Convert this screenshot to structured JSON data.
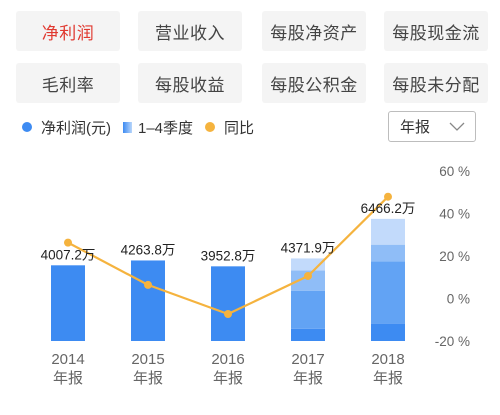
{
  "tabs": [
    {
      "label": "净利润",
      "active": true
    },
    {
      "label": "营业收入",
      "active": false
    },
    {
      "label": "每股净资产",
      "active": false
    },
    {
      "label": "每股现金流",
      "active": false
    },
    {
      "label": "毛利率",
      "active": false
    },
    {
      "label": "每股收益",
      "active": false
    },
    {
      "label": "每股公积金",
      "active": false
    },
    {
      "label": "每股未分配",
      "active": false
    }
  ],
  "legend": {
    "net_profit": "净利润(元)",
    "quarter": "1–4季度",
    "yoy": "同比"
  },
  "period_select": {
    "value": "年报",
    "icon": "chevron-down-icon"
  },
  "colors": {
    "accent": "#e0382f",
    "bar": "#3d8bf2",
    "line": "#f5b33e",
    "quarter_shades": [
      "#3d8bf2",
      "#62a3f4",
      "#8fbdf7",
      "#c2dafb"
    ]
  },
  "chart_data": {
    "type": "bar",
    "categories": [
      "2014",
      "2015",
      "2016",
      "2017",
      "2018"
    ],
    "category_suffix": "年报",
    "values": [
      4007.2,
      4263.8,
      3952.8,
      4371.9,
      6466.2
    ],
    "value_labels": [
      "4007.2万",
      "4263.8万",
      "3952.8万",
      "4371.9万",
      "6466.2万"
    ],
    "quarterly_breakdown": [
      null,
      null,
      null,
      [
        650,
        2000,
        1080,
        641.9
      ],
      [
        920,
        3300,
        880,
        1366.2
      ]
    ],
    "left_ylim": [
      0,
      9000
    ],
    "yoy": [
      26.3,
      6.4,
      -7.3,
      10.6,
      47.9
    ],
    "right_ylim": [
      -20,
      60
    ],
    "right_ticks": [
      "60 %",
      "40 %",
      "20 %",
      "0 %",
      "-20 %"
    ],
    "right_tick_values": [
      60,
      40,
      20,
      0,
      -20
    ],
    "grid": false
  }
}
